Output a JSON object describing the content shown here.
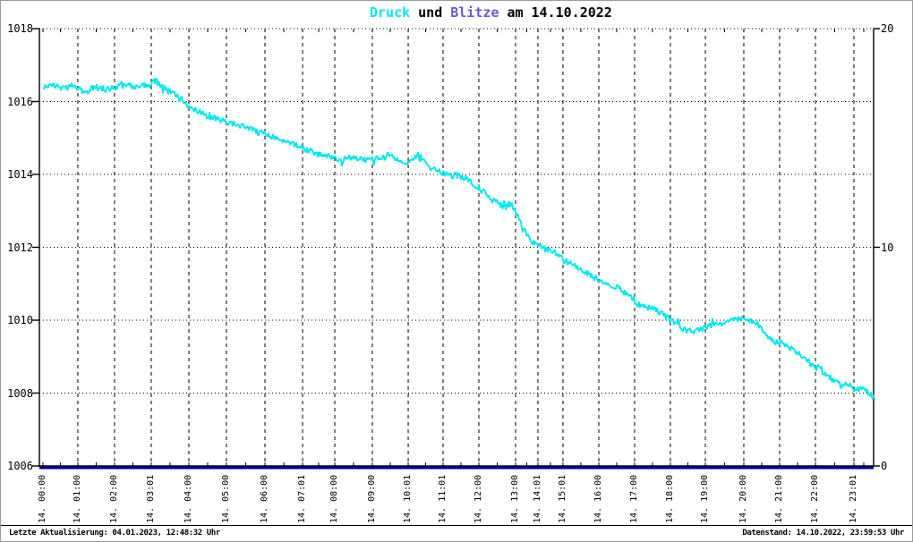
{
  "title": {
    "druck": "Druck",
    "und": "und",
    "blitze": "Blitze",
    "date_part": "am 14.10.2022"
  },
  "colors": {
    "druck_series": "#00E8F0",
    "blitze_title": "#6A5ACD",
    "blitze_series": "#000099",
    "grid": "#000000",
    "background": "#FFFFFF",
    "frame_border": "#9C9C9C"
  },
  "status_bar": {
    "left": "Letzte Aktualisierung: 04.01.2023, 12:48:32 Uhr",
    "right": "Datenstand: 14.10.2022, 23:59:53 Uhr"
  },
  "chart_data": {
    "type": "line",
    "title": "Druck und Blitze am 14.10.2022",
    "grid": true,
    "y_left": {
      "series": "Druck",
      "range": [
        1006,
        1018
      ],
      "ticks": [
        1006,
        1008,
        1010,
        1012,
        1014,
        1016,
        1018
      ]
    },
    "y_right": {
      "series": "Blitze",
      "range": [
        0,
        20
      ],
      "ticks": [
        0,
        10,
        20
      ]
    },
    "x_ticks": [
      {
        "label": "14. 00:00",
        "f": 0.0043
      },
      {
        "label": "14. 01:00",
        "f": 0.0461
      },
      {
        "label": "14. 02:00",
        "f": 0.0901
      },
      {
        "label": "14. 03:01",
        "f": 0.1341
      },
      {
        "label": "14. 04:00",
        "f": 0.1792
      },
      {
        "label": "14. 05:00",
        "f": 0.2242
      },
      {
        "label": "14. 06:00",
        "f": 0.2704
      },
      {
        "label": "14. 07:01",
        "f": 0.3155
      },
      {
        "label": "14. 08:00",
        "f": 0.3541
      },
      {
        "label": "14. 09:00",
        "f": 0.3991
      },
      {
        "label": "14. 10:01",
        "f": 0.4421
      },
      {
        "label": "14. 11:01",
        "f": 0.4839
      },
      {
        "label": "14. 12:00",
        "f": 0.5268
      },
      {
        "label": "14. 13:00",
        "f": 0.5708
      },
      {
        "label": "14. 14:01",
        "f": 0.5976
      },
      {
        "label": "14. 15:01",
        "f": 0.6276
      },
      {
        "label": "14. 16:00",
        "f": 0.6706
      },
      {
        "label": "14. 17:00",
        "f": 0.7135
      },
      {
        "label": "14. 18:00",
        "f": 0.7564
      },
      {
        "label": "14. 19:00",
        "f": 0.7983
      },
      {
        "label": "14. 20:00",
        "f": 0.8444
      },
      {
        "label": "14. 21:00",
        "f": 0.8873
      },
      {
        "label": "14. 22:00",
        "f": 0.9303
      },
      {
        "label": "14. 23:01",
        "f": 0.9764
      }
    ],
    "noise_amplitude_hpa": 0.09,
    "series": [
      {
        "name": "Druck",
        "axis": "left",
        "color": "#00E8F0",
        "points": [
          [
            0.0043,
            1016.4
          ],
          [
            0.0161,
            1016.45
          ],
          [
            0.029,
            1016.35
          ],
          [
            0.0418,
            1016.45
          ],
          [
            0.0547,
            1016.25
          ],
          [
            0.0676,
            1016.4
          ],
          [
            0.0805,
            1016.35
          ],
          [
            0.0933,
            1016.4
          ],
          [
            0.1062,
            1016.45
          ],
          [
            0.1191,
            1016.4
          ],
          [
            0.1298,
            1016.45
          ],
          [
            0.1384,
            1016.55
          ],
          [
            0.147,
            1016.45
          ],
          [
            0.1556,
            1016.3
          ],
          [
            0.1642,
            1016.15
          ],
          [
            0.1727,
            1016.0
          ],
          [
            0.1813,
            1015.85
          ],
          [
            0.1921,
            1015.7
          ],
          [
            0.2028,
            1015.6
          ],
          [
            0.2135,
            1015.5
          ],
          [
            0.2242,
            1015.45
          ],
          [
            0.2371,
            1015.35
          ],
          [
            0.25,
            1015.25
          ],
          [
            0.2629,
            1015.15
          ],
          [
            0.2704,
            1015.1
          ],
          [
            0.2822,
            1015.0
          ],
          [
            0.2951,
            1014.9
          ],
          [
            0.3079,
            1014.8
          ],
          [
            0.3155,
            1014.75
          ],
          [
            0.324,
            1014.65
          ],
          [
            0.3348,
            1014.55
          ],
          [
            0.3455,
            1014.5
          ],
          [
            0.3541,
            1014.45
          ],
          [
            0.3648,
            1014.4
          ],
          [
            0.3755,
            1014.45
          ],
          [
            0.3863,
            1014.4
          ],
          [
            0.3991,
            1014.4
          ],
          [
            0.4099,
            1014.45
          ],
          [
            0.4206,
            1014.5
          ],
          [
            0.4292,
            1014.4
          ],
          [
            0.4378,
            1014.3
          ],
          [
            0.4464,
            1014.35
          ],
          [
            0.4539,
            1014.55
          ],
          [
            0.4614,
            1014.4
          ],
          [
            0.4689,
            1014.2
          ],
          [
            0.4764,
            1014.1
          ],
          [
            0.4839,
            1014.05
          ],
          [
            0.4925,
            1014.0
          ],
          [
            0.5011,
            1013.95
          ],
          [
            0.5118,
            1013.9
          ],
          [
            0.5204,
            1013.7
          ],
          [
            0.5268,
            1013.6
          ],
          [
            0.5343,
            1013.5
          ],
          [
            0.5418,
            1013.35
          ],
          [
            0.5504,
            1013.2
          ],
          [
            0.559,
            1013.1
          ],
          [
            0.5665,
            1013.2
          ],
          [
            0.5719,
            1012.9
          ],
          [
            0.5783,
            1012.6
          ],
          [
            0.5847,
            1012.35
          ],
          [
            0.5912,
            1012.15
          ],
          [
            0.5976,
            1012.05
          ],
          [
            0.6062,
            1011.95
          ],
          [
            0.6148,
            1011.9
          ],
          [
            0.6212,
            1011.8
          ],
          [
            0.6276,
            1011.7
          ],
          [
            0.6362,
            1011.55
          ],
          [
            0.6448,
            1011.45
          ],
          [
            0.6534,
            1011.35
          ],
          [
            0.662,
            1011.2
          ],
          [
            0.6706,
            1011.1
          ],
          [
            0.6792,
            1011.0
          ],
          [
            0.6877,
            1010.95
          ],
          [
            0.6963,
            1010.85
          ],
          [
            0.7049,
            1010.7
          ],
          [
            0.7135,
            1010.5
          ],
          [
            0.7221,
            1010.4
          ],
          [
            0.7307,
            1010.35
          ],
          [
            0.7393,
            1010.3
          ],
          [
            0.7479,
            1010.15
          ],
          [
            0.7564,
            1010.0
          ],
          [
            0.765,
            1009.9
          ],
          [
            0.7747,
            1009.7
          ],
          [
            0.7843,
            1009.75
          ],
          [
            0.7929,
            1009.75
          ],
          [
            0.8015,
            1009.85
          ],
          [
            0.8101,
            1009.9
          ],
          [
            0.8187,
            1009.95
          ],
          [
            0.8272,
            1010.0
          ],
          [
            0.8358,
            1010.0
          ],
          [
            0.8444,
            1010.05
          ],
          [
            0.853,
            1010.0
          ],
          [
            0.8616,
            1009.9
          ],
          [
            0.8691,
            1009.65
          ],
          [
            0.8766,
            1009.5
          ],
          [
            0.8852,
            1009.4
          ],
          [
            0.8938,
            1009.3
          ],
          [
            0.9023,
            1009.2
          ],
          [
            0.9109,
            1009.1
          ],
          [
            0.9195,
            1008.9
          ],
          [
            0.9303,
            1008.7
          ],
          [
            0.941,
            1008.55
          ],
          [
            0.9517,
            1008.35
          ],
          [
            0.9625,
            1008.2
          ],
          [
            0.97,
            1008.25
          ],
          [
            0.9764,
            1008.1
          ],
          [
            0.9839,
            1008.15
          ],
          [
            0.9914,
            1008.05
          ],
          [
            1.0,
            1007.9
          ]
        ]
      },
      {
        "name": "Blitze",
        "axis": "right",
        "color": "#000099",
        "points": [
          [
            0.0,
            0
          ],
          [
            1.0,
            0
          ]
        ]
      }
    ]
  }
}
